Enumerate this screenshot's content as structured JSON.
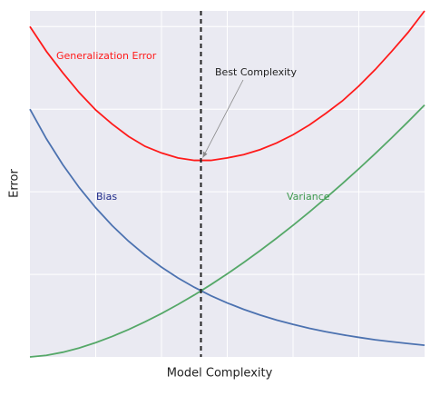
{
  "chart_data": {
    "type": "line",
    "xlabel": "Model Complexity",
    "ylabel": "Error",
    "x": [
      0,
      0.25,
      0.5,
      0.75,
      1,
      1.25,
      1.5,
      1.75,
      2,
      2.25,
      2.5,
      2.75,
      3,
      3.25,
      3.5,
      3.75,
      4,
      4.25,
      4.5,
      4.75,
      5,
      5.25,
      5.5,
      5.75,
      6
    ],
    "series": [
      {
        "name": "Generalization Error",
        "color": "#ff1a1a",
        "label_color": "#ff1a1a",
        "values": [
          4.0,
          3.7,
          3.44,
          3.2,
          2.99,
          2.82,
          2.67,
          2.55,
          2.47,
          2.41,
          2.38,
          2.38,
          2.41,
          2.45,
          2.51,
          2.59,
          2.69,
          2.81,
          2.95,
          3.1,
          3.28,
          3.48,
          3.7,
          3.93,
          4.19
        ]
      },
      {
        "name": "Bias",
        "color": "#4c72b0",
        "label_color": "#1f2a8a",
        "values": [
          3.0,
          2.642,
          2.327,
          2.05,
          1.806,
          1.59,
          1.401,
          1.234,
          1.087,
          0.957,
          0.843,
          0.742,
          0.654,
          0.576,
          0.507,
          0.447,
          0.394,
          0.347,
          0.305,
          0.269,
          0.237,
          0.208,
          0.184,
          0.162,
          0.142
        ]
      },
      {
        "name": "Variance",
        "color": "#55a868",
        "label_color": "#3f9a4f",
        "values": [
          0,
          0.019,
          0.057,
          0.109,
          0.173,
          0.248,
          0.332,
          0.425,
          0.526,
          0.635,
          0.751,
          0.875,
          1.006,
          1.144,
          1.288,
          1.438,
          1.594,
          1.756,
          1.925,
          2.099,
          2.278,
          2.463,
          2.653,
          2.849,
          3.05
        ]
      }
    ],
    "vline": 2.6,
    "annotation": {
      "text": "Best Complexity",
      "x": 2.6,
      "y": 2.38
    },
    "xlim": [
      0,
      6
    ],
    "ylim": [
      0,
      4.19
    ],
    "xticks": [
      1,
      2,
      3,
      4,
      5
    ],
    "yticks": [
      1,
      2,
      3,
      4
    ],
    "grid": true
  }
}
